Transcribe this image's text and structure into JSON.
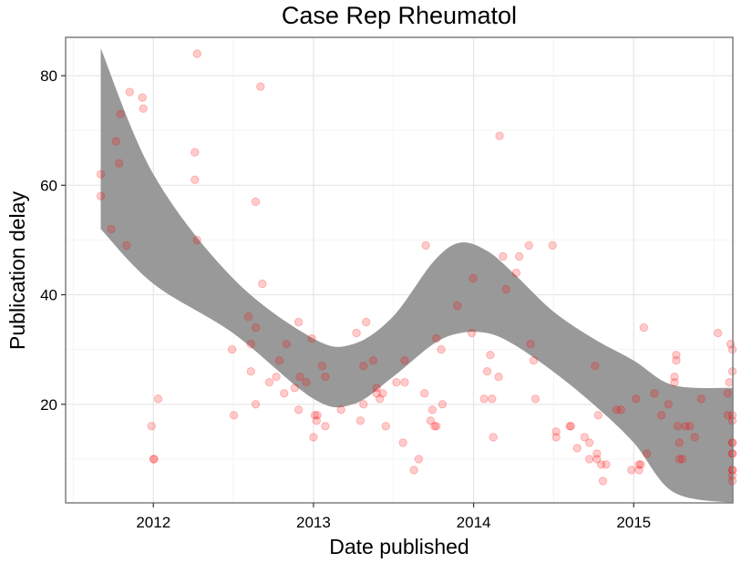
{
  "chart_data": {
    "type": "scatter",
    "title": "Case Rep Rheumatol",
    "xlabel": "Date published",
    "ylabel": "Publication delay",
    "xlim": [
      "2011-06-15",
      "2015-08-15"
    ],
    "ylim": [
      2,
      87
    ],
    "x_ticks": [
      "2012",
      "2013",
      "2014",
      "2015"
    ],
    "y_ticks": [
      20,
      40,
      60,
      80
    ],
    "grid": true,
    "background": "#ffffff",
    "point_color": "#ff0000",
    "point_alpha": 0.2,
    "band_color": "#999999",
    "series": [
      {
        "type": "scatter",
        "points": [
          [
            "2011-09-03",
            62
          ],
          [
            "2011-09-03",
            58
          ],
          [
            "2011-09-27",
            52
          ],
          [
            "2011-10-08",
            68
          ],
          [
            "2011-10-15",
            64
          ],
          [
            "2011-10-18",
            73
          ],
          [
            "2011-11-01",
            49
          ],
          [
            "2011-11-08",
            77
          ],
          [
            "2011-12-07",
            76
          ],
          [
            "2011-12-09",
            74
          ],
          [
            "2011-12-28",
            16
          ],
          [
            "2012-01-01",
            10
          ],
          [
            "2012-01-03",
            10
          ],
          [
            "2012-01-12",
            21
          ],
          [
            "2012-04-05",
            66
          ],
          [
            "2012-04-05",
            61
          ],
          [
            "2012-04-10",
            84
          ],
          [
            "2012-04-10",
            50
          ],
          [
            "2012-06-29",
            30
          ],
          [
            "2012-07-03",
            18
          ],
          [
            "2012-08-05",
            36
          ],
          [
            "2012-08-11",
            26
          ],
          [
            "2012-08-11",
            31
          ],
          [
            "2012-08-22",
            34
          ],
          [
            "2012-08-22",
            57
          ],
          [
            "2012-08-22",
            20
          ],
          [
            "2012-09-02",
            78
          ],
          [
            "2012-09-06",
            42
          ],
          [
            "2012-09-22",
            24
          ],
          [
            "2012-10-08",
            25
          ],
          [
            "2012-10-15",
            28
          ],
          [
            "2012-10-26",
            22
          ],
          [
            "2012-10-31",
            31
          ],
          [
            "2012-11-19",
            23
          ],
          [
            "2012-11-28",
            19
          ],
          [
            "2012-11-28",
            35
          ],
          [
            "2012-12-01",
            25
          ],
          [
            "2012-12-15",
            24
          ],
          [
            "2012-12-28",
            32
          ],
          [
            "2013-01-01",
            14
          ],
          [
            "2013-01-04",
            18
          ],
          [
            "2013-01-08",
            17
          ],
          [
            "2013-01-10",
            18
          ],
          [
            "2013-01-21",
            27
          ],
          [
            "2013-01-28",
            25
          ],
          [
            "2013-01-28",
            16
          ],
          [
            "2013-03-05",
            19
          ],
          [
            "2013-04-09",
            33
          ],
          [
            "2013-04-18",
            17
          ],
          [
            "2013-04-25",
            20
          ],
          [
            "2013-04-25",
            27
          ],
          [
            "2013-05-01",
            35
          ],
          [
            "2013-05-17",
            28
          ],
          [
            "2013-05-25",
            23
          ],
          [
            "2013-05-25",
            22
          ],
          [
            "2013-06-01",
            21
          ],
          [
            "2013-06-08",
            22
          ],
          [
            "2013-06-15",
            16
          ],
          [
            "2013-07-09",
            24
          ],
          [
            "2013-07-24",
            13
          ],
          [
            "2013-07-28",
            28
          ],
          [
            "2013-07-28",
            24
          ],
          [
            "2013-08-18",
            8
          ],
          [
            "2013-08-29",
            10
          ],
          [
            "2013-09-11",
            22
          ],
          [
            "2013-09-14",
            49
          ],
          [
            "2013-09-25",
            17
          ],
          [
            "2013-09-29",
            19
          ],
          [
            "2013-10-04",
            16
          ],
          [
            "2013-10-08",
            16
          ],
          [
            "2013-10-08",
            32
          ],
          [
            "2013-10-19",
            30
          ],
          [
            "2013-10-22",
            20
          ],
          [
            "2013-11-25",
            38
          ],
          [
            "2013-12-31",
            43
          ],
          [
            "2013-12-28",
            33
          ],
          [
            "2014-01-25",
            21
          ],
          [
            "2014-02-01",
            26
          ],
          [
            "2014-02-08",
            29
          ],
          [
            "2014-02-12",
            21
          ],
          [
            "2014-02-15",
            14
          ],
          [
            "2014-02-27",
            25
          ],
          [
            "2014-03-01",
            69
          ],
          [
            "2014-03-09",
            47
          ],
          [
            "2014-03-16",
            41
          ],
          [
            "2014-04-08",
            44
          ],
          [
            "2014-04-15",
            47
          ],
          [
            "2014-05-07",
            49
          ],
          [
            "2014-05-11",
            31
          ],
          [
            "2014-05-18",
            28
          ],
          [
            "2014-05-22",
            21
          ],
          [
            "2014-06-30",
            49
          ],
          [
            "2014-07-08",
            15
          ],
          [
            "2014-07-08",
            14
          ],
          [
            "2014-08-08",
            16
          ],
          [
            "2014-08-11",
            16
          ],
          [
            "2014-08-25",
            12
          ],
          [
            "2014-09-11",
            14
          ],
          [
            "2014-09-22",
            13
          ],
          [
            "2014-09-22",
            10
          ],
          [
            "2014-10-05",
            27
          ],
          [
            "2014-10-09",
            11
          ],
          [
            "2014-10-09",
            10
          ],
          [
            "2014-10-12",
            18
          ],
          [
            "2014-10-19",
            9
          ],
          [
            "2014-10-23",
            6
          ],
          [
            "2014-10-30",
            9
          ],
          [
            "2014-11-23",
            19
          ],
          [
            "2014-12-03",
            19
          ],
          [
            "2014-12-27",
            8
          ],
          [
            "2015-01-06",
            21
          ],
          [
            "2015-01-13",
            9
          ],
          [
            "2015-01-13",
            8
          ],
          [
            "2015-01-17",
            9
          ],
          [
            "2015-01-24",
            34
          ],
          [
            "2015-01-31",
            11
          ],
          [
            "2015-02-17",
            22
          ],
          [
            "2015-03-05",
            18
          ],
          [
            "2015-03-21",
            20
          ],
          [
            "2015-04-04",
            25
          ],
          [
            "2015-04-04",
            24
          ],
          [
            "2015-04-08",
            28
          ],
          [
            "2015-04-08",
            29
          ],
          [
            "2015-04-11",
            16
          ],
          [
            "2015-04-15",
            13
          ],
          [
            "2015-04-15",
            10
          ],
          [
            "2015-04-22",
            10
          ],
          [
            "2015-04-29",
            16
          ],
          [
            "2015-05-09",
            16
          ],
          [
            "2015-05-20",
            14
          ],
          [
            "2015-06-04",
            21
          ],
          [
            "2015-07-12",
            33
          ],
          [
            "2015-08-03",
            22
          ],
          [
            "2015-08-03",
            18
          ],
          [
            "2015-08-07",
            24
          ],
          [
            "2015-08-10",
            31
          ],
          [
            "2015-08-14",
            30
          ],
          [
            "2015-08-14",
            26
          ],
          [
            "2015-08-14",
            17
          ],
          [
            "2015-08-14",
            13
          ],
          [
            "2015-08-14",
            11
          ],
          [
            "2015-08-14",
            6
          ],
          [
            "2015-08-14",
            7
          ],
          [
            "2015-08-14",
            11
          ],
          [
            "2015-08-14",
            13
          ],
          [
            "2015-08-14",
            18
          ],
          [
            "2015-08-14",
            8
          ],
          [
            "2015-08-14",
            8
          ]
        ]
      },
      {
        "type": "band",
        "upper": [
          [
            "2011-09-03",
            85
          ],
          [
            "2012-01-01",
            62
          ],
          [
            "2012-07-01",
            43
          ],
          [
            "2013-01-01",
            32
          ],
          [
            "2013-04-01",
            31
          ],
          [
            "2013-07-01",
            36
          ],
          [
            "2013-10-01",
            46
          ],
          [
            "2013-12-01",
            49.5
          ],
          [
            "2014-02-01",
            48
          ],
          [
            "2014-04-01",
            44
          ],
          [
            "2014-07-01",
            37
          ],
          [
            "2014-10-01",
            32
          ],
          [
            "2015-01-01",
            28
          ],
          [
            "2015-04-01",
            23.5
          ],
          [
            "2015-08-14",
            23
          ]
        ],
        "lower": [
          [
            "2011-09-03",
            52
          ],
          [
            "2012-01-01",
            42
          ],
          [
            "2012-07-01",
            33
          ],
          [
            "2013-01-01",
            21
          ],
          [
            "2013-04-01",
            20
          ],
          [
            "2013-07-01",
            25
          ],
          [
            "2013-10-01",
            31
          ],
          [
            "2013-12-01",
            33
          ],
          [
            "2014-02-01",
            33
          ],
          [
            "2014-04-01",
            31
          ],
          [
            "2014-07-01",
            26
          ],
          [
            "2014-10-01",
            20
          ],
          [
            "2015-01-01",
            13
          ],
          [
            "2015-04-01",
            4
          ],
          [
            "2015-08-14",
            2
          ]
        ]
      }
    ]
  }
}
